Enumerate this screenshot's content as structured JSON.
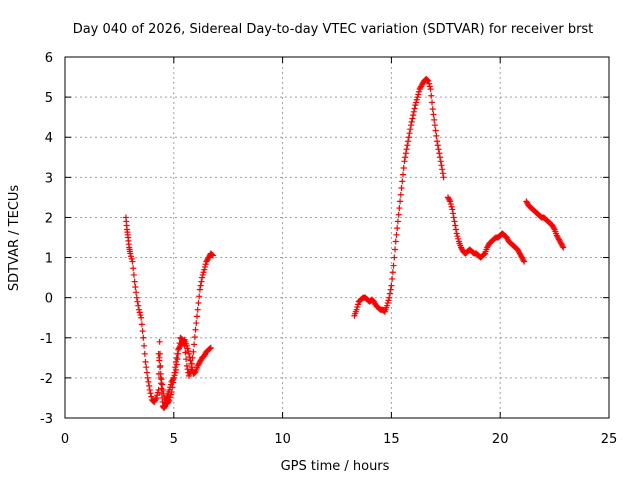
{
  "chart_data": {
    "type": "scatter",
    "title": "Day 040 of 2026, Sidereal Day-to-day VTEC variation (SDTVAR) for receiver brst",
    "xlabel": "GPS time / hours",
    "ylabel": "SDTVAR / TECUs",
    "xlim": [
      0,
      25
    ],
    "ylim": [
      -3,
      6
    ],
    "xticks": [
      "0",
      "5",
      "10",
      "15",
      "20",
      "25"
    ],
    "yticks": [
      "-3",
      "-2",
      "-1",
      "0",
      "1",
      "2",
      "3",
      "4",
      "5",
      "6"
    ],
    "grid": true,
    "marker": "+",
    "series": [
      {
        "name": "SDTVAR",
        "color": "#ff0000",
        "segments": [
          {
            "x": [
              2.8,
              2.85,
              2.9,
              2.95,
              3.0,
              3.1,
              3.2,
              3.3,
              3.4,
              3.5,
              3.6,
              3.7,
              3.8,
              3.9,
              4.0,
              4.1,
              4.2,
              4.3,
              4.35,
              4.4,
              4.45,
              4.5,
              4.55,
              4.6,
              4.65,
              4.7,
              4.8,
              4.9,
              5.0,
              5.1,
              5.2,
              5.3,
              5.4,
              5.5,
              5.6,
              5.7,
              5.8,
              5.9,
              6.0,
              6.1,
              6.2,
              6.3,
              6.4,
              6.5,
              6.6,
              6.7,
              6.8
            ],
            "y": [
              2.0,
              1.7,
              1.5,
              1.25,
              1.1,
              0.9,
              0.4,
              0.0,
              -0.3,
              -0.5,
              -1.0,
              -1.6,
              -2.0,
              -2.3,
              -2.55,
              -2.6,
              -2.5,
              -2.3,
              -1.1,
              -2.0,
              -2.4,
              -2.7,
              -2.75,
              -2.7,
              -2.55,
              -2.45,
              -2.3,
              -2.1,
              -2.0,
              -1.8,
              -1.4,
              -1.0,
              -1.05,
              -1.2,
              -1.7,
              -1.95,
              -1.8,
              -1.35,
              -0.8,
              -0.3,
              0.2,
              0.5,
              0.7,
              0.9,
              1.0,
              1.1,
              1.05
            ]
          },
          {
            "x": [
              4.3,
              4.4,
              4.5,
              4.6,
              4.7,
              4.8,
              4.9,
              5.0,
              5.1,
              5.2,
              5.3,
              5.4,
              5.5,
              5.6,
              5.7,
              5.8,
              5.9,
              6.0,
              6.1,
              6.2,
              6.3,
              6.4,
              6.5,
              6.6,
              6.7
            ],
            "y": [
              -1.4,
              -1.9,
              -2.3,
              -2.6,
              -2.65,
              -2.55,
              -2.35,
              -2.0,
              -1.6,
              -1.3,
              -1.2,
              -1.1,
              -1.05,
              -1.2,
              -1.4,
              -1.65,
              -1.9,
              -1.85,
              -1.7,
              -1.6,
              -1.5,
              -1.45,
              -1.35,
              -1.3,
              -1.25
            ]
          },
          {
            "x": [
              13.3,
              13.4,
              13.5,
              13.6,
              13.7,
              13.8,
              13.9,
              14.0,
              14.1,
              14.2,
              14.3,
              14.4,
              14.5,
              14.6,
              14.7,
              14.8,
              14.9,
              15.0,
              15.1,
              15.2,
              15.3,
              15.4,
              15.5,
              15.6,
              15.7,
              15.8,
              15.9,
              16.0,
              16.1,
              16.2,
              16.3,
              16.4,
              16.5,
              16.6,
              16.7,
              16.8,
              16.9,
              17.0,
              17.1,
              17.2,
              17.3,
              17.4
            ],
            "y": [
              -0.45,
              -0.3,
              -0.1,
              -0.05,
              0.0,
              0.0,
              -0.05,
              -0.1,
              -0.05,
              -0.1,
              -0.2,
              -0.25,
              -0.3,
              -0.3,
              -0.35,
              -0.2,
              0.0,
              0.3,
              0.8,
              1.4,
              1.9,
              2.4,
              2.9,
              3.4,
              3.7,
              4.0,
              4.3,
              4.55,
              4.8,
              5.0,
              5.2,
              5.3,
              5.4,
              5.45,
              5.4,
              5.2,
              4.7,
              4.3,
              3.9,
              3.6,
              3.3,
              3.0
            ]
          },
          {
            "x": [
              17.6,
              17.7,
              17.8,
              17.9,
              18.0,
              18.1,
              18.2,
              18.3,
              18.4,
              18.5,
              18.6,
              18.7,
              18.8,
              18.9,
              19.0,
              19.1,
              19.2,
              19.3,
              19.4,
              19.5,
              19.6,
              19.7,
              19.8,
              19.9,
              20.0,
              20.1,
              20.2,
              20.3,
              20.4,
              20.5,
              20.6,
              20.7,
              20.8,
              20.9,
              21.0,
              21.1
            ],
            "y": [
              2.5,
              2.4,
              2.2,
              1.9,
              1.6,
              1.4,
              1.25,
              1.15,
              1.1,
              1.15,
              1.2,
              1.15,
              1.1,
              1.1,
              1.05,
              1.0,
              1.05,
              1.1,
              1.25,
              1.35,
              1.4,
              1.45,
              1.5,
              1.5,
              1.55,
              1.6,
              1.55,
              1.5,
              1.4,
              1.35,
              1.3,
              1.25,
              1.2,
              1.1,
              1.0,
              0.9
            ]
          },
          {
            "x": [
              21.2,
              21.3,
              21.4,
              21.5,
              21.6,
              21.7,
              21.8,
              21.9,
              22.0,
              22.1,
              22.2,
              22.3,
              22.4,
              22.5,
              22.6,
              22.7,
              22.8,
              22.9
            ],
            "y": [
              2.4,
              2.3,
              2.25,
              2.2,
              2.15,
              2.1,
              2.05,
              2.0,
              2.0,
              1.95,
              1.9,
              1.85,
              1.8,
              1.7,
              1.55,
              1.45,
              1.35,
              1.25
            ]
          }
        ]
      }
    ]
  }
}
